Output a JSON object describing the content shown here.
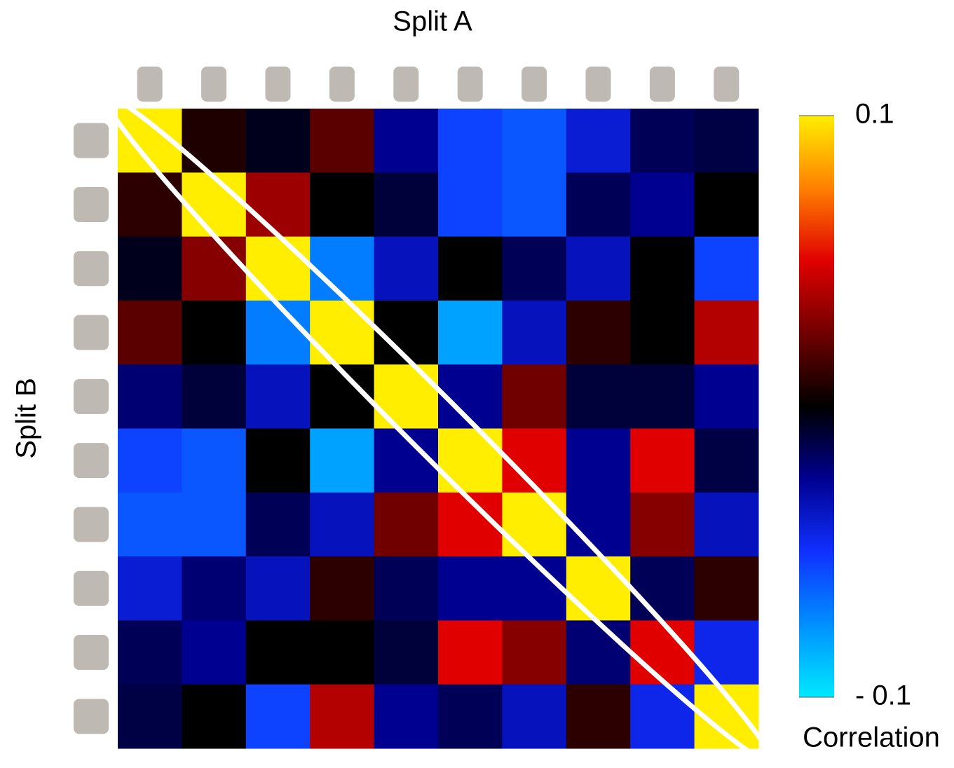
{
  "chart_data": {
    "type": "heatmap",
    "x_label": "Split A",
    "y_label": "Split B",
    "colorbar_label": "Correlation",
    "x_categories": [
      null,
      null,
      null,
      null,
      null,
      null,
      null,
      null,
      null,
      null
    ],
    "y_categories": [
      null,
      null,
      null,
      null,
      null,
      null,
      null,
      null,
      null,
      null
    ],
    "values": [
      [
        0.1,
        0.007,
        -0.005,
        0.02,
        -0.025,
        -0.055,
        -0.06,
        -0.04,
        -0.015,
        -0.012
      ],
      [
        0.01,
        0.1,
        0.035,
        0.0,
        -0.01,
        -0.055,
        -0.06,
        -0.015,
        -0.025,
        0.0
      ],
      [
        -0.005,
        0.03,
        0.1,
        -0.07,
        -0.035,
        0.0,
        -0.015,
        -0.035,
        0.0,
        -0.055
      ],
      [
        0.02,
        0.0,
        -0.07,
        0.1,
        0.0,
        -0.08,
        -0.035,
        0.01,
        0.0,
        0.04
      ],
      [
        -0.02,
        -0.01,
        -0.035,
        0.0,
        0.1,
        -0.025,
        0.025,
        -0.01,
        -0.01,
        -0.025
      ],
      [
        -0.055,
        -0.06,
        0.0,
        -0.08,
        -0.025,
        0.1,
        0.05,
        -0.025,
        0.05,
        -0.012
      ],
      [
        -0.06,
        -0.06,
        -0.015,
        -0.035,
        0.025,
        0.05,
        0.1,
        -0.025,
        0.03,
        -0.035
      ],
      [
        -0.04,
        -0.02,
        -0.035,
        0.01,
        -0.015,
        -0.025,
        -0.025,
        0.1,
        -0.015,
        0.01
      ],
      [
        -0.015,
        -0.025,
        0.0,
        0.0,
        -0.01,
        0.05,
        0.03,
        -0.02,
        0.05,
        -0.045
      ],
      [
        -0.012,
        0.0,
        -0.055,
        0.04,
        -0.025,
        -0.015,
        -0.035,
        0.01,
        -0.045,
        0.1
      ]
    ],
    "clim": [
      -0.1,
      0.1
    ],
    "cticks": [
      {
        "value": -0.1,
        "label": "- 0.1"
      },
      0.1
    ],
    "colormap": [
      "#00e8ff",
      "#0090ff",
      "#1030ff",
      "#000090",
      "#000000",
      "#700000",
      "#e00000",
      "#ff8000",
      "#ffee00"
    ]
  }
}
